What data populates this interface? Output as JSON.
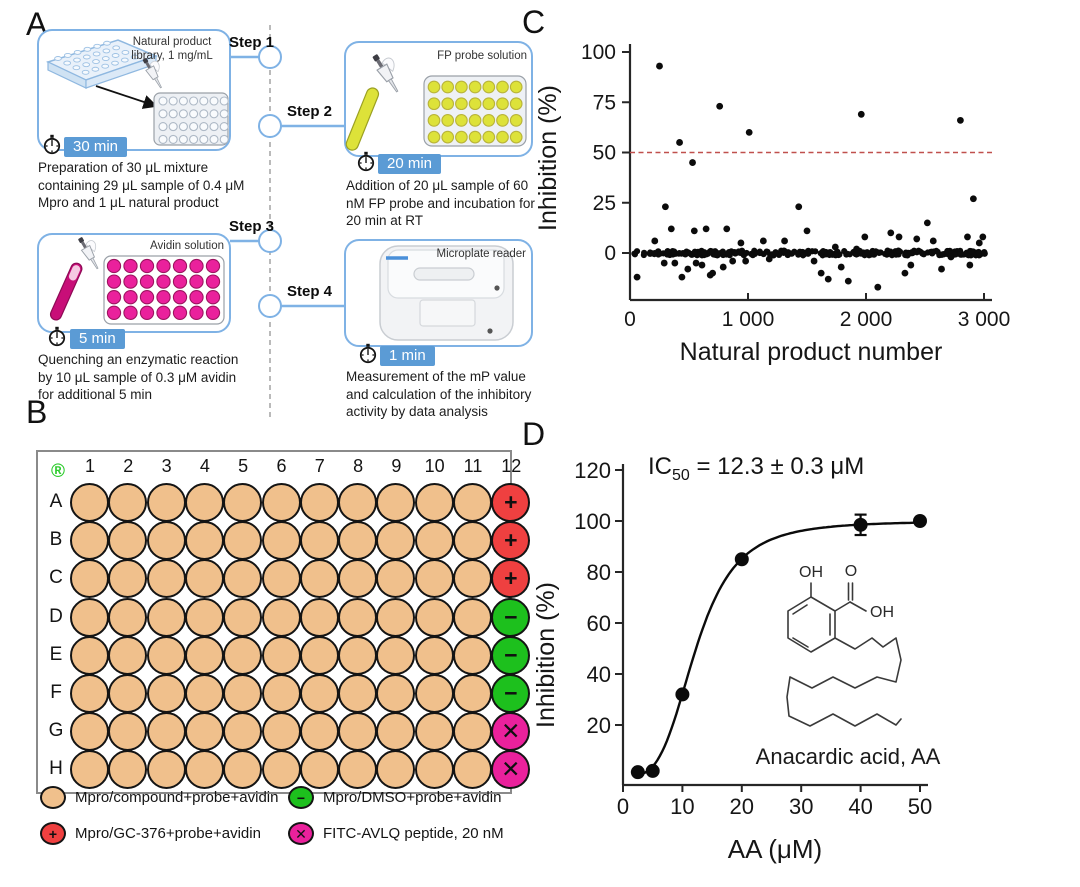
{
  "panels": {
    "a": "A",
    "b": "B",
    "c": "C",
    "d": "D"
  },
  "colors": {
    "accent_blue": "#7fb2e5",
    "badge_blue": "#5b9bd5",
    "dashed_gray": "#a3a3a3",
    "threshold_red": "#c0504d",
    "well_tan": "#f0c08c",
    "well_red": "#ef4040",
    "well_green": "#1dc01d",
    "well_magenta": "#ea219c",
    "probe_yellow": "#dde239",
    "avidin_magenta": "#c80e78",
    "plate_blue": "#8fb8e0"
  },
  "panel_a": {
    "steps": [
      "Step 1",
      "Step 2",
      "Step 3",
      "Step 4"
    ],
    "boxes": [
      {
        "corner_label": "Natural product library, 1 mg/mL",
        "time": "30 min",
        "desc": "Preparation of 30 μL mixture containing 29 μL sample of 0.4 μM Mpro and 1 μL natural product"
      },
      {
        "corner_label": "FP probe solution",
        "time": "20 min",
        "desc": "Addition of 20 μL sample of 60 nM FP probe and incubation for 20 min at RT"
      },
      {
        "corner_label": "Avidin solution",
        "time": "5 min",
        "desc": "Quenching an enzymatic reaction by 10 μL sample of 0.3 μM avidin for additional 5 min"
      },
      {
        "corner_label": "Microplate reader",
        "time": "1 min",
        "desc": "Measurement of the mP value and calculation of the inhibitory activity by data analysis"
      }
    ]
  },
  "panel_b": {
    "corner_symbol": "®",
    "col_labels": [
      "1",
      "2",
      "3",
      "4",
      "5",
      "6",
      "7",
      "8",
      "9",
      "10",
      "11",
      "12"
    ],
    "row_labels": [
      "A",
      "B",
      "C",
      "D",
      "E",
      "F",
      "G",
      "H"
    ],
    "col12": {
      "A": "positive",
      "B": "positive",
      "C": "positive",
      "D": "negative",
      "E": "negative",
      "F": "negative",
      "G": "peptide",
      "H": "peptide"
    },
    "symbols": {
      "default": "",
      "positive": "+",
      "negative": "−",
      "peptide": "✕"
    },
    "legend": [
      {
        "type": "default",
        "label": "Mpro/compound+probe+avidin"
      },
      {
        "type": "positive",
        "label": "Mpro/GC-376+probe+avidin"
      },
      {
        "type": "negative",
        "label": "Mpro/DMSO+probe+avidin"
      },
      {
        "type": "peptide",
        "label": "FITC-AVLQ peptide, 20 nM"
      }
    ]
  },
  "chart_data": [
    {
      "id": "hts-screen-scatter",
      "type": "scatter",
      "panel": "C",
      "xlabel": "Natural product number",
      "ylabel": "Inhibition (%)",
      "x_ticks": [
        {
          "v": 0,
          "label": "0"
        },
        {
          "v": 1000,
          "label": "1 000"
        },
        {
          "v": 2000,
          "label": "2 000"
        },
        {
          "v": 3000,
          "label": "3 000"
        }
      ],
      "y_ticks": [
        0,
        25,
        50,
        75,
        100
      ],
      "xlim": [
        0,
        3100
      ],
      "ylim": [
        -24,
        104
      ],
      "threshold_y": 50,
      "marker_color": "#0b0b0b",
      "outlier_points": [
        [
          60,
          -12
        ],
        [
          210,
          6
        ],
        [
          250,
          93
        ],
        [
          290,
          -5
        ],
        [
          300,
          23
        ],
        [
          350,
          12
        ],
        [
          380,
          -5
        ],
        [
          420,
          55
        ],
        [
          440,
          -12
        ],
        [
          490,
          -8
        ],
        [
          530,
          45
        ],
        [
          545,
          11
        ],
        [
          560,
          -5
        ],
        [
          610,
          -6
        ],
        [
          645,
          12
        ],
        [
          680,
          -11
        ],
        [
          700,
          -10
        ],
        [
          760,
          73
        ],
        [
          790,
          -7
        ],
        [
          820,
          12
        ],
        [
          870,
          -4
        ],
        [
          940,
          5
        ],
        [
          980,
          -4
        ],
        [
          1010,
          60
        ],
        [
          1130,
          6
        ],
        [
          1180,
          -3
        ],
        [
          1310,
          6
        ],
        [
          1430,
          23
        ],
        [
          1500,
          11
        ],
        [
          1560,
          -4
        ],
        [
          1620,
          -10
        ],
        [
          1680,
          -13
        ],
        [
          1740,
          3
        ],
        [
          1790,
          -7
        ],
        [
          1850,
          -14
        ],
        [
          1920,
          2
        ],
        [
          1960,
          69
        ],
        [
          1990,
          8
        ],
        [
          2100,
          -17
        ],
        [
          2210,
          10
        ],
        [
          2280,
          8
        ],
        [
          2330,
          -10
        ],
        [
          2380,
          -6
        ],
        [
          2430,
          7
        ],
        [
          2520,
          15
        ],
        [
          2570,
          6
        ],
        [
          2640,
          -8
        ],
        [
          2720,
          -2
        ],
        [
          2800,
          66
        ],
        [
          2860,
          8
        ],
        [
          2880,
          -6
        ],
        [
          2910,
          27
        ],
        [
          2960,
          5
        ],
        [
          2990,
          8
        ]
      ],
      "baseline_band": {
        "x_start": 25,
        "x_end": 3010,
        "count": 260,
        "y_center": 0,
        "y_jitter": 1.2,
        "seed": 13
      }
    },
    {
      "id": "aa-dose-response",
      "type": "scatter-curve",
      "panel": "D",
      "xlabel": "AA (μM)",
      "ylabel": "Inhibition (%)",
      "x_ticks": [
        {
          "v": 0,
          "label": "0"
        },
        {
          "v": 10,
          "label": "10"
        },
        {
          "v": 20,
          "label": "20"
        },
        {
          "v": 30,
          "label": "30"
        },
        {
          "v": 40,
          "label": "40"
        },
        {
          "v": 50,
          "label": "50"
        }
      ],
      "y_ticks": [
        20,
        40,
        60,
        80,
        100,
        120
      ],
      "xlim": [
        0,
        52
      ],
      "ylim": [
        -3,
        124
      ],
      "marker_color": "#0b0b0b",
      "points": [
        [
          2.5,
          1.5
        ],
        [
          5,
          2
        ],
        [
          10,
          32
        ],
        [
          20,
          85
        ],
        [
          40,
          98.5
        ],
        [
          50,
          100
        ]
      ],
      "error_bars": [
        {
          "x": 40,
          "y": 98.5,
          "err": 4
        }
      ],
      "curve": {
        "model": "hill",
        "ic50": 12.3,
        "hill": 3.6,
        "top": 100,
        "x_start": 2.2,
        "x_end": 50
      },
      "annotation": {
        "prefix": "IC",
        "sub": "50",
        "rest": " = 12.3 ± 0.3 μM"
      },
      "structure": {
        "caption": "Anacardic acid, AA",
        "labels": {
          "phenol": "OH",
          "carbonyl": "O",
          "carboxyl": "OH"
        }
      }
    }
  ]
}
